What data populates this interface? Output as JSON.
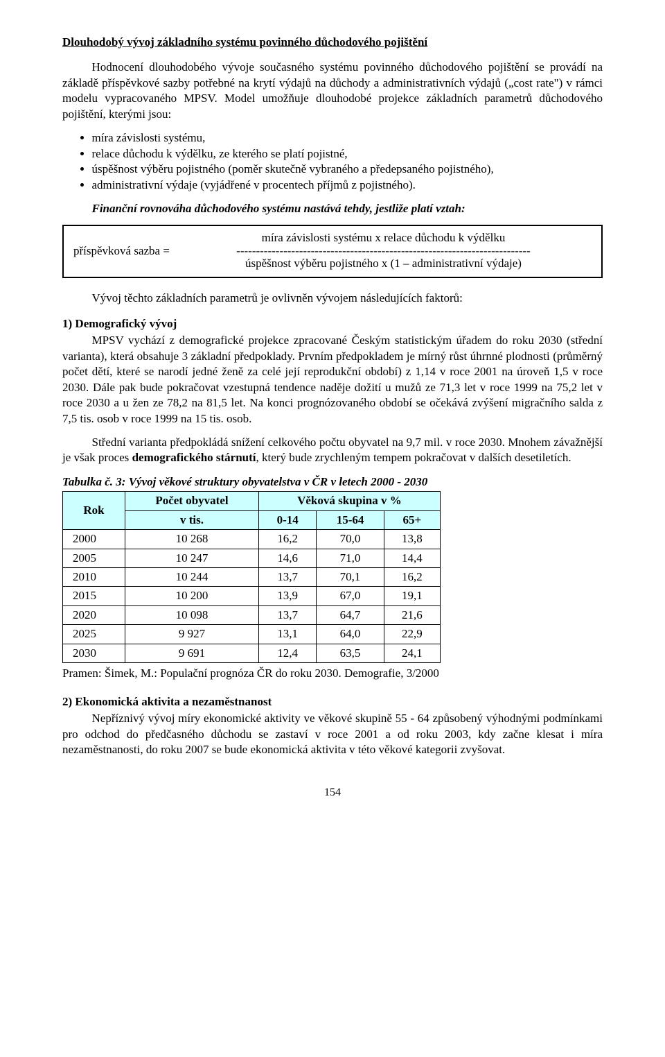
{
  "page": {
    "number": "154"
  },
  "colors": {
    "table_header_bg": "#ccffff",
    "text": "#000000",
    "background": "#ffffff",
    "border": "#000000"
  },
  "typography": {
    "family": "Times New Roman",
    "body_size_pt": 12,
    "line_height": 1.32
  },
  "section_title": "Dlouhodobý vývoj základního systému povinného důchodového pojištění",
  "intro": {
    "p1a": "Hodnocení dlouhodobého vývoje současného systému povinného důchodového pojištění se provádí na základě příspěvkové sazby potřebné na krytí výdajů na důchody a administrativních výdajů („cost rate\") v rámci modelu vypracovaného MPSV. Model umožňuje dlouhodobé projekce základních parametrů důchodového pojištění, kterými jsou:",
    "bullets": [
      "míra závislosti systému,",
      "relace důchodu k výdělku, ze kterého se platí pojistné,",
      "úspěšnost výběru pojistného (poměr skutečně vybraného a předepsaného pojistného),",
      "administrativní výdaje (vyjádřené v procentech příjmů z pojistného)."
    ],
    "relation_sentence": "Finanční rovnováha důchodového systému nastává tehdy, jestliže platí vztah:"
  },
  "formula": {
    "left": "příspěvková sazba  =",
    "numerator": "míra závislosti systému x relace důchodu k výdělku",
    "dashline": "---------------------------------------------------------------------------",
    "denominator": "úspěšnost výběru pojistného x (1 – administrativní výdaje)"
  },
  "after_formula": "Vývoj těchto základních parametrů je ovlivněn vývojem následujících faktorů:",
  "demografie": {
    "heading": "1) Demografický vývoj",
    "p1": "MPSV vychází z demografické projekce zpracované Českým statistickým úřadem do roku 2030 (střední varianta), která obsahuje 3 základní předpoklady. Prvním předpokladem je mírný růst úhrnné plodnosti (průměrný počet dětí, které se narodí jedné ženě za celé její reprodukční období) z 1,14 v roce 2001 na úroveň 1,5 v roce 2030. Dále pak bude pokračovat vzestupná tendence naděje dožití u mužů ze 71,3 let v roce 1999 na 75,2 let v roce 2030 a u žen ze 78,2 na 81,5 let. Na konci prognózovaného období se očekává zvýšení migračního salda z 7,5 tis. osob v roce 1999 na 15 tis. osob.",
    "p2_a": "Střední varianta předpokládá snížení celkového počtu obyvatel na 9,7 mil. v roce 2030. Mnohem závažnější je však proces ",
    "p2_b_bold": "demografického stárnutí",
    "p2_c": ", který bude zrychleným tempem pokračovat v dalších desetiletích."
  },
  "table": {
    "caption": "Tabulka č. 3: Vývoj věkové struktury obyvatelstva v ČR v letech 2000 - 2030",
    "col_rok": "Rok",
    "col_pocet_a": "Počet obyvatel",
    "col_pocet_b": "v tis.",
    "col_span": "Věková skupina v %",
    "col_014": "0-14",
    "col_1564": "15-64",
    "col_65": "65+",
    "rows": [
      {
        "rok": "2000",
        "pocet": "10 268",
        "a": "16,2",
        "b": "70,0",
        "c": "13,8"
      },
      {
        "rok": "2005",
        "pocet": "10 247",
        "a": "14,6",
        "b": "71,0",
        "c": "14,4"
      },
      {
        "rok": "2010",
        "pocet": "10 244",
        "a": "13,7",
        "b": "70,1",
        "c": "16,2"
      },
      {
        "rok": "2015",
        "pocet": "10 200",
        "a": "13,9",
        "b": "67,0",
        "c": "19,1"
      },
      {
        "rok": "2020",
        "pocet": "10 098",
        "a": "13,7",
        "b": "64,7",
        "c": "21,6"
      },
      {
        "rok": "2025",
        "pocet": "9 927",
        "a": "13,1",
        "b": "64,0",
        "c": "22,9"
      },
      {
        "rok": "2030",
        "pocet": "9 691",
        "a": "12,4",
        "b": "63,5",
        "c": "24,1"
      }
    ],
    "widths_pct": [
      18,
      28,
      18,
      18,
      18
    ],
    "source": "Pramen: Šimek, M.: Populační prognóza ČR do roku 2030. Demografie, 3/2000"
  },
  "ekon": {
    "heading": "2) Ekonomická aktivita a nezaměstnanost",
    "p1": "Nepříznivý vývoj míry ekonomické aktivity ve věkové skupině 55 - 64 způsobený výhodnými podmínkami pro odchod do předčasného důchodu se zastaví v roce 2001 a od roku 2003, kdy začne klesat i míra nezaměstnanosti, do roku 2007 se bude ekonomická aktivita v této věkové kategorii zvyšovat."
  }
}
